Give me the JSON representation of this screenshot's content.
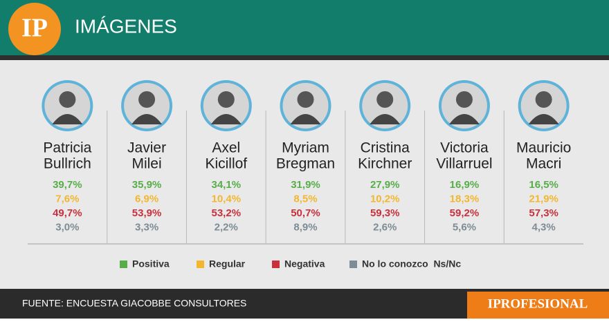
{
  "header": {
    "logo": "IP",
    "title": "IMÁGENES"
  },
  "people": [
    {
      "name": [
        "Patricia",
        "Bullrich"
      ],
      "values": [
        "39,7%",
        "7,6%",
        "49,7%",
        "3,0%"
      ]
    },
    {
      "name": [
        "Javier",
        "Milei"
      ],
      "values": [
        "35,9%",
        "6,9%",
        "53,9%",
        "3,3%"
      ]
    },
    {
      "name": [
        "Axel",
        "Kicillof"
      ],
      "values": [
        "34,1%",
        "10,4%",
        "53,2%",
        "2,2%"
      ]
    },
    {
      "name": [
        "Myriam",
        "Bregman"
      ],
      "values": [
        "31,9%",
        "8,5%",
        "50,7%",
        "8,9%"
      ]
    },
    {
      "name": [
        "Cristina",
        "Kirchner"
      ],
      "values": [
        "27,9%",
        "10,2%",
        "59,3%",
        "2,6%"
      ]
    },
    {
      "name": [
        "Victoria",
        "Villarruel"
      ],
      "values": [
        "16,9%",
        "18,3%",
        "59,2%",
        "5,6%"
      ]
    },
    {
      "name": [
        "Mauricio",
        "Macri"
      ],
      "values": [
        "16,5%",
        "21,9%",
        "57,3%",
        "4,3%"
      ]
    }
  ],
  "legend": [
    {
      "label": "Positiva",
      "color": "#58ad4a"
    },
    {
      "label": "Regular",
      "color": "#f2b72f"
    },
    {
      "label": "Negativa",
      "color": "#c9303c"
    },
    {
      "label": "No lo conozco  Ns/Nc",
      "color": "#7e8c95"
    }
  ],
  "footer": {
    "source": "FUENTE: ENCUESTA GIACOBBE CONSULTORES",
    "brand": "IPROFESIONAL"
  }
}
